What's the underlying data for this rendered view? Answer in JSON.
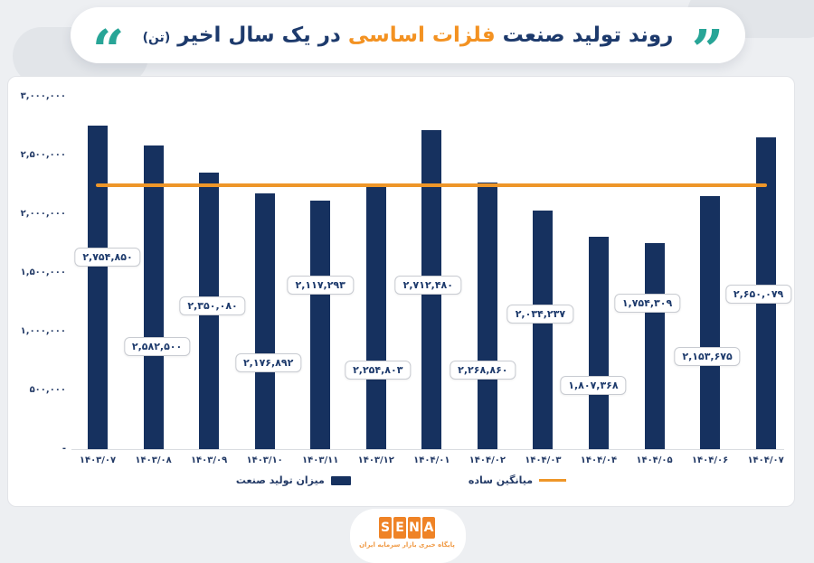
{
  "header": {
    "right_quote": "”",
    "left_quote": "“",
    "title_part_a": "روند تولید صنعت",
    "title_highlight": "فلزات اساسی",
    "title_part_b": "در یک سال اخیر",
    "title_unit": "(تن)",
    "accent_teal": "#28a597",
    "title_navy": "#1d3a6c",
    "highlight_orange": "#f39222"
  },
  "chart_data": {
    "type": "bar",
    "title": "روند تولید صنعت فلزات اساسی در یک سال اخیر (تن)",
    "categories": [
      "۱۴۰۳/۰۷",
      "۱۴۰۳/۰۸",
      "۱۴۰۳/۰۹",
      "۱۴۰۳/۱۰",
      "۱۴۰۳/۱۱",
      "۱۴۰۳/۱۲",
      "۱۴۰۴/۰۱",
      "۱۴۰۴/۰۲",
      "۱۴۰۴/۰۳",
      "۱۴۰۴/۰۴",
      "۱۴۰۴/۰۵",
      "۱۴۰۴/۰۶",
      "۱۴۰۴/۰۷"
    ],
    "series": [
      {
        "name": "میزان تولید صنعت",
        "type": "bar",
        "color": "#16315f",
        "values": [
          2754850,
          2582500,
          2350080,
          2176892,
          2117293,
          2254803,
          2712480,
          2268860,
          2034237,
          1807368,
          1754309,
          2153675,
          2650079
        ],
        "value_labels": [
          "۲,۷۵۴,۸۵۰",
          "۲,۵۸۲,۵۰۰",
          "۲,۳۵۰,۰۸۰",
          "۲,۱۷۶,۸۹۲",
          "۲,۱۱۷,۲۹۳",
          "۲,۲۵۴,۸۰۳",
          "۲,۷۱۲,۴۸۰",
          "۲,۲۶۸,۸۶۰",
          "۲,۰۳۴,۲۳۷",
          "۱,۸۰۷,۳۶۸",
          "۱,۷۵۴,۳۰۹",
          "۲,۱۵۳,۶۷۵",
          "۲,۶۵۰,۰۷۹"
        ]
      },
      {
        "name": "میانگین ساده",
        "type": "line",
        "color": "#ee9629",
        "value": 2247279
      }
    ],
    "ylim": [
      0,
      3000000
    ],
    "ytick_step": 500000,
    "ytick_labels_top_to_bottom": [
      "۳,۰۰۰,۰۰۰",
      "۲,۵۰۰,۰۰۰",
      "۲,۰۰۰,۰۰۰",
      "۱,۵۰۰,۰۰۰",
      "۱,۰۰۰,۰۰۰",
      "۵۰۰,۰۰۰",
      "-"
    ],
    "grid": false,
    "legend_position": "bottom"
  },
  "legend": {
    "items": [
      {
        "label": "میزان تولید صنعت",
        "marker": "square",
        "color": "#16315f"
      },
      {
        "label": "میانگین ساده",
        "marker": "line",
        "color": "#ee9629"
      }
    ]
  },
  "footer": {
    "logo_letters": [
      "S",
      "E",
      "N",
      "A"
    ],
    "tagline": "پایگاه خبری بازار سرمایه ایران",
    "logo_color": "#ef8326"
  }
}
